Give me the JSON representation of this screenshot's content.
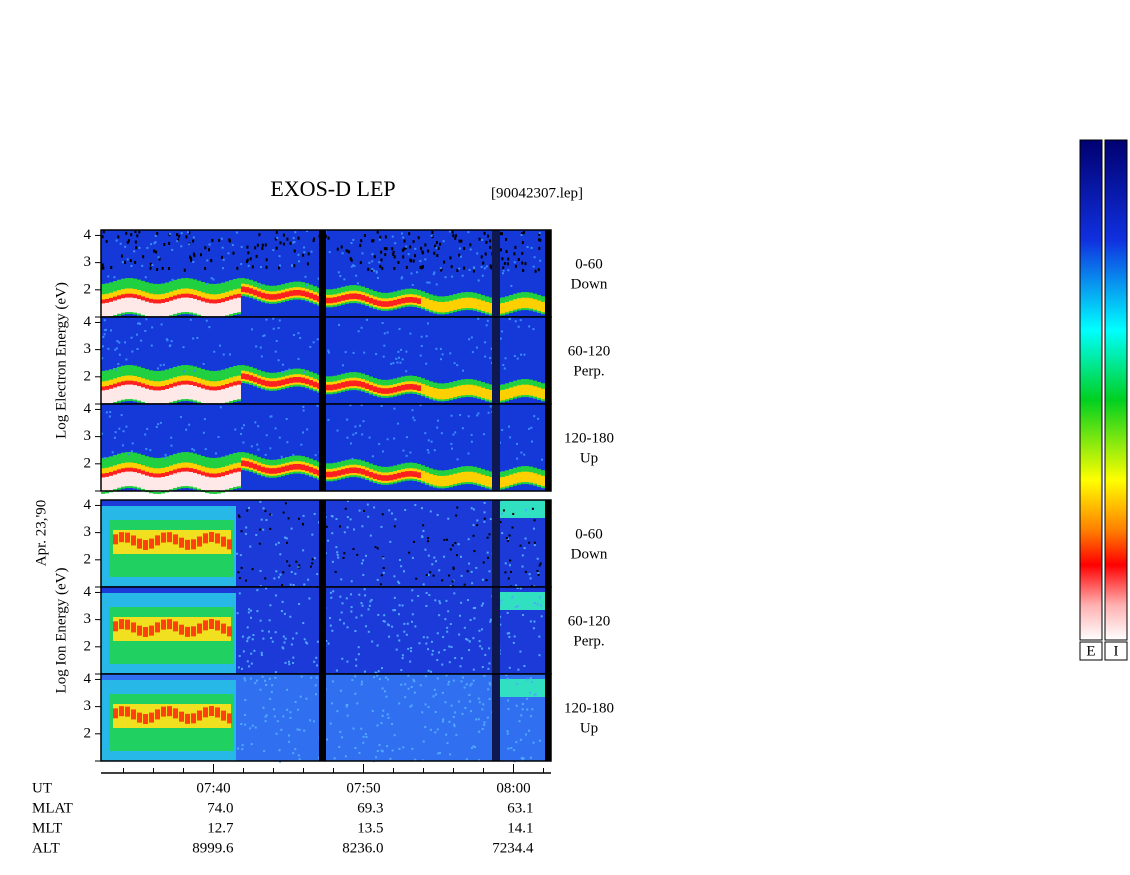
{
  "chart_data": {
    "type": "spectrogram",
    "title": "EXOS-D LEP",
    "file": "[90042307.lep]",
    "date": "Apr. 23,'90",
    "groups": [
      {
        "ylabel": "Log Electron Energy (eV)",
        "panels": [
          {
            "range": "0-60",
            "direction": "Down"
          },
          {
            "range": "60-120",
            "direction": "Perp."
          },
          {
            "range": "120-180",
            "direction": "Up"
          }
        ]
      },
      {
        "ylabel": "Log Ion Energy (eV)",
        "panels": [
          {
            "range": "0-60",
            "direction": "Down"
          },
          {
            "range": "60-120",
            "direction": "Perp."
          },
          {
            "range": "120-180",
            "direction": "Up"
          }
        ]
      }
    ],
    "ylim": [
      1,
      4.2
    ],
    "yticks": [
      2,
      3,
      4
    ],
    "xlabel": "UT",
    "xlim": [
      "07:32:30",
      "08:02:30"
    ],
    "xticks": [
      "07:40",
      "07:50",
      "08:00"
    ],
    "orbit": [
      {
        "name": "MLAT",
        "values": [
          "74.0",
          "69.3",
          "63.1"
        ]
      },
      {
        "name": "MLT",
        "values": [
          "12.7",
          "13.5",
          "14.1"
        ]
      },
      {
        "name": "ALT",
        "values": [
          "8999.6",
          "8236.0",
          "7234.4"
        ]
      }
    ],
    "colorbars": [
      "E",
      "I"
    ]
  }
}
